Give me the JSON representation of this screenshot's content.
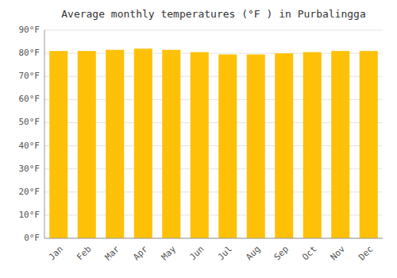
{
  "chart_data": {
    "type": "bar",
    "title": "Average monthly temperatures (°F ) in Purbalingga",
    "categories": [
      "Jan",
      "Feb",
      "Mar",
      "Apr",
      "May",
      "Jun",
      "Jul",
      "Aug",
      "Sep",
      "Oct",
      "Nov",
      "Dec"
    ],
    "values": [
      81,
      81,
      81.5,
      82,
      81.5,
      80.5,
      79.5,
      79.5,
      80,
      80.5,
      81,
      81
    ],
    "color": "#FFC107",
    "ylim": [
      0,
      90
    ],
    "yticks": [
      {
        "value": 0,
        "label": "0°F"
      },
      {
        "value": 10,
        "label": "10°F"
      },
      {
        "value": 20,
        "label": "20°F"
      },
      {
        "value": 30,
        "label": "30°F"
      },
      {
        "value": 40,
        "label": "40°F"
      },
      {
        "value": 50,
        "label": "50°F"
      },
      {
        "value": 60,
        "label": "60°F"
      },
      {
        "value": 70,
        "label": "70°F"
      },
      {
        "value": 80,
        "label": "80°F"
      },
      {
        "value": 90,
        "label": "90°F"
      }
    ],
    "grid": true
  }
}
